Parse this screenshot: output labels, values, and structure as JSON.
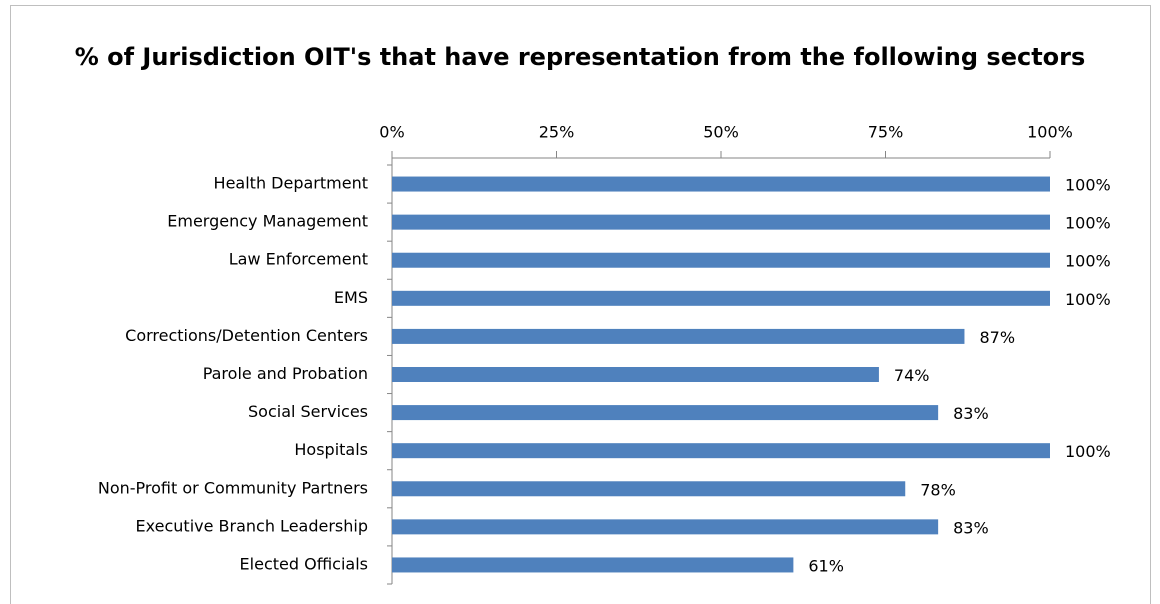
{
  "chart_data": {
    "type": "bar",
    "orientation": "horizontal",
    "title": "% of Jurisdiction OIT's that have representation from the following sectors",
    "categories": [
      "Health Department",
      "Emergency Management",
      "Law Enforcement",
      "EMS",
      "Corrections/Detention Centers",
      "Parole and Probation",
      "Social Services",
      "Hospitals",
      "Non-Profit or Community Partners",
      "Executive Branch Leadership",
      "Elected Officials"
    ],
    "values": [
      100,
      100,
      100,
      100,
      87,
      74,
      83,
      100,
      78,
      83,
      61
    ],
    "value_labels": [
      "100%",
      "100%",
      "100%",
      "100%",
      "87%",
      "74%",
      "83%",
      "100%",
      "78%",
      "83%",
      "61%"
    ],
    "color": "#4f81bd",
    "xlim": [
      0,
      100
    ],
    "xticks": [
      {
        "value": 0,
        "label": "0%"
      },
      {
        "value": 25,
        "label": "25%"
      },
      {
        "value": 50,
        "label": "50%"
      },
      {
        "value": 75,
        "label": "75%"
      },
      {
        "value": 100,
        "label": "100%"
      }
    ],
    "grid": false
  }
}
